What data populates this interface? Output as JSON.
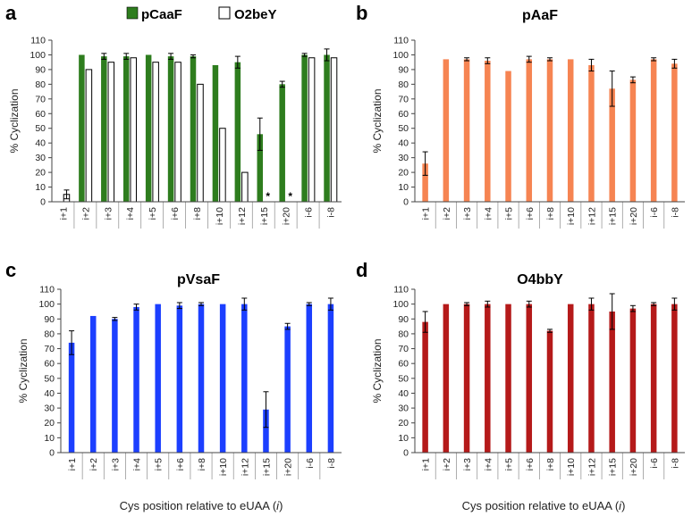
{
  "figure": {
    "xlabel_prefix": "Cys position relative to eUAA (",
    "xlabel_italic": "i",
    "xlabel_suffix": ")"
  },
  "chart_data": [
    {
      "panel": "a",
      "type": "bar",
      "title": "",
      "ylabel": "% Cyclization",
      "ylim": [
        0,
        110
      ],
      "yticks": [
        0,
        10,
        20,
        30,
        40,
        50,
        60,
        70,
        80,
        90,
        100,
        110
      ],
      "categories": [
        "i+1",
        "i+2",
        "i+3",
        "i+4",
        "i+5",
        "i+6",
        "i+8",
        "i+10",
        "i+12",
        "i+15",
        "i+20",
        "i-6",
        "i-8"
      ],
      "legend": {
        "placement": "top"
      },
      "series": [
        {
          "name": "pCaaF",
          "color": "#2e7d1e",
          "fill": "solid",
          "values": [
            0,
            100,
            99,
            99,
            100,
            99,
            99,
            93,
            95,
            46,
            80,
            100,
            100
          ],
          "errors": [
            0,
            0,
            2,
            2,
            0,
            2,
            1,
            0,
            4,
            11,
            2,
            1,
            4
          ]
        },
        {
          "name": "O2beY",
          "color": "#ffffff",
          "fill": "open",
          "values": [
            5,
            90,
            95,
            98,
            95,
            95,
            80,
            50,
            20,
            0,
            0,
            98,
            98
          ],
          "errors": [
            3,
            0,
            0,
            0,
            0,
            0,
            0,
            0,
            0,
            0,
            0,
            0,
            0
          ]
        }
      ],
      "annotations": [
        {
          "category": "i+15",
          "text": "*"
        },
        {
          "category": "i+20",
          "text": "*"
        }
      ]
    },
    {
      "panel": "b",
      "type": "bar",
      "title": "pAaF",
      "ylabel": "% Cyclization",
      "ylim": [
        0,
        110
      ],
      "yticks": [
        0,
        10,
        20,
        30,
        40,
        50,
        60,
        70,
        80,
        90,
        100,
        110
      ],
      "categories": [
        "i+1",
        "i+2",
        "i+3",
        "i+4",
        "i+5",
        "i+6",
        "i+8",
        "i+10",
        "i+12",
        "i+15",
        "i+20",
        "i-6",
        "i-8"
      ],
      "series": [
        {
          "name": "pAaF",
          "color": "#f68452",
          "fill": "solid",
          "values": [
            26,
            97,
            97,
            96,
            89,
            97,
            97,
            97,
            93,
            77,
            83,
            97,
            94
          ],
          "errors": [
            8,
            0,
            1,
            2,
            0,
            2,
            1,
            0,
            4,
            12,
            2,
            1,
            3
          ]
        }
      ]
    },
    {
      "panel": "c",
      "type": "bar",
      "title": "pVsaF",
      "ylabel": "% Cyclization",
      "ylim": [
        0,
        110
      ],
      "yticks": [
        0,
        10,
        20,
        30,
        40,
        50,
        60,
        70,
        80,
        90,
        100,
        110
      ],
      "categories": [
        "i+1",
        "i+2",
        "i+3",
        "i+4",
        "i+5",
        "i+6",
        "i+8",
        "i+10",
        "i+12",
        "i+15",
        "i+20",
        "i-6",
        "i-8"
      ],
      "series": [
        {
          "name": "pVsaF",
          "color": "#1c3fff",
          "fill": "solid",
          "values": [
            74,
            92,
            90,
            98,
            100,
            99,
            100,
            100,
            100,
            29,
            85,
            100,
            100
          ],
          "errors": [
            8,
            0,
            1,
            2,
            0,
            2,
            1,
            0,
            4,
            12,
            2,
            1,
            4
          ]
        }
      ]
    },
    {
      "panel": "d",
      "type": "bar",
      "title": "O4bbY",
      "ylabel": "% Cyclization",
      "ylim": [
        0,
        110
      ],
      "yticks": [
        0,
        10,
        20,
        30,
        40,
        50,
        60,
        70,
        80,
        90,
        100,
        110
      ],
      "categories": [
        "i+1",
        "i+2",
        "i+3",
        "i+4",
        "i+5",
        "i+6",
        "i+8",
        "i+10",
        "i+12",
        "i+15",
        "i+20",
        "i-6",
        "i-8"
      ],
      "series": [
        {
          "name": "O4bbY",
          "color": "#b51a1a",
          "fill": "solid",
          "values": [
            88,
            100,
            100,
            100,
            100,
            100,
            82,
            100,
            100,
            95,
            97,
            100,
            100
          ],
          "errors": [
            7,
            0,
            1,
            2,
            0,
            2,
            1,
            0,
            4,
            12,
            2,
            1,
            4
          ]
        }
      ]
    }
  ]
}
